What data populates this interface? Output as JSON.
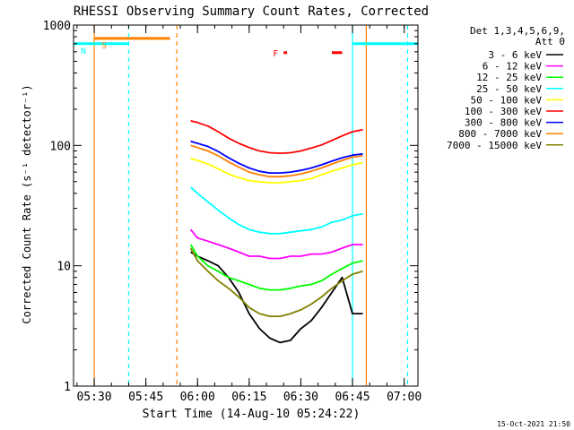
{
  "chart_data": {
    "type": "line",
    "title": "RHESSI Observing Summary Count Rates, Corrected",
    "xlabel": "Start Time (14-Aug-10 05:24:22)",
    "ylabel": "Corrected Count Rate (s⁻¹ detector⁻¹)",
    "yscale": "log",
    "ylim": [
      1,
      1000
    ],
    "xlim": [
      "05:24",
      "07:04"
    ],
    "x_ticks": [
      "05:30",
      "05:45",
      "06:00",
      "06:15",
      "06:30",
      "06:45",
      "07:00"
    ],
    "y_ticks": [
      "1",
      "10",
      "100",
      "1000"
    ],
    "legend_header": [
      "Det 1,3,4,5,6,9,",
      "Att 0"
    ],
    "legend_position": "right",
    "footer": "15-Oct-2021 21:50",
    "x": [
      "05:58",
      "06:00",
      "06:03",
      "06:06",
      "06:09",
      "06:12",
      "06:15",
      "06:18",
      "06:21",
      "06:24",
      "06:27",
      "06:30",
      "06:33",
      "06:36",
      "06:39",
      "06:42",
      "06:45",
      "06:48"
    ],
    "series": [
      {
        "name": "3 - 6 keV",
        "color": "#000000",
        "values": [
          13,
          12,
          11,
          10,
          8,
          6,
          4,
          3,
          2.5,
          2.3,
          2.4,
          3,
          3.5,
          4.5,
          6,
          8,
          4,
          4
        ]
      },
      {
        "name": "6 - 12 keV",
        "color": "#ff00ff",
        "values": [
          20,
          17,
          16,
          15,
          14,
          13,
          12,
          12,
          11.5,
          11.5,
          12,
          12,
          12.5,
          12.5,
          13,
          14,
          15,
          15
        ]
      },
      {
        "name": "12 - 25 keV",
        "color": "#00ff00",
        "values": [
          15,
          12,
          10,
          9,
          8,
          7.5,
          7,
          6.5,
          6.3,
          6.3,
          6.5,
          6.8,
          7,
          7.5,
          8.5,
          9.5,
          10.5,
          11
        ]
      },
      {
        "name": "25 - 50 keV",
        "color": "#00ffff",
        "values": [
          45,
          40,
          34,
          29,
          25,
          22,
          20,
          19,
          18.5,
          18.5,
          19,
          19.5,
          20,
          21,
          23,
          24,
          26,
          27
        ]
      },
      {
        "name": "50 - 100 keV",
        "color": "#ffff00",
        "values": [
          78,
          75,
          70,
          64,
          58,
          54,
          51,
          50,
          49,
          49,
          50,
          51,
          53,
          57,
          61,
          65,
          69,
          72
        ]
      },
      {
        "name": "100 - 300 keV",
        "color": "#ff0000",
        "values": [
          160,
          155,
          145,
          130,
          115,
          104,
          96,
          90,
          87,
          86,
          87,
          90,
          95,
          101,
          110,
          120,
          130,
          135
        ]
      },
      {
        "name": "300 - 800 keV",
        "color": "#0000ff",
        "values": [
          108,
          104,
          98,
          89,
          79,
          71,
          65,
          61,
          59,
          59,
          60,
          62,
          65,
          69,
          74,
          79,
          83,
          85
        ]
      },
      {
        "name": "800 - 7000 keV",
        "color": "#ff8000",
        "values": [
          100,
          96,
          90,
          82,
          73,
          66,
          60,
          57,
          55,
          55,
          56,
          58,
          61,
          65,
          70,
          75,
          80,
          82
        ]
      },
      {
        "name": "7000 - 15000 keV",
        "color": "#808000",
        "values": [
          14,
          11,
          9,
          7.5,
          6.5,
          5.5,
          4.5,
          4,
          3.8,
          3.8,
          4,
          4.3,
          4.8,
          5.5,
          6.5,
          7.5,
          8.5,
          9
        ]
      }
    ],
    "segments": [
      {
        "label": "S",
        "color": "#ff8000",
        "start": "05:30",
        "end": "05:52",
        "y": 775
      },
      {
        "label": "N",
        "color": "#00ffff",
        "start": "05:24",
        "end": "05:40",
        "y": 700
      },
      {
        "label": "N",
        "color": "#00ffff",
        "start": "06:45",
        "end": "07:04",
        "y": 700
      },
      {
        "label": "F",
        "color": "#ff0000",
        "start": "06:25",
        "end": "06:26",
        "y": 590
      },
      {
        "label": "F",
        "color": "#ff0000",
        "start": "06:39",
        "end": "06:42",
        "y": 590
      }
    ],
    "vlines": [
      {
        "time": "05:30",
        "color": "#ff8000",
        "style": "solid"
      },
      {
        "time": "05:40",
        "color": "#00ffff",
        "style": "dashed"
      },
      {
        "time": "05:54",
        "color": "#ff8000",
        "style": "dashed"
      },
      {
        "time": "06:45",
        "color": "#00ffff",
        "style": "solid"
      },
      {
        "time": "06:49",
        "color": "#ff8000",
        "style": "solid"
      },
      {
        "time": "07:01",
        "color": "#00ffff",
        "style": "dashed"
      }
    ],
    "grid": false
  }
}
